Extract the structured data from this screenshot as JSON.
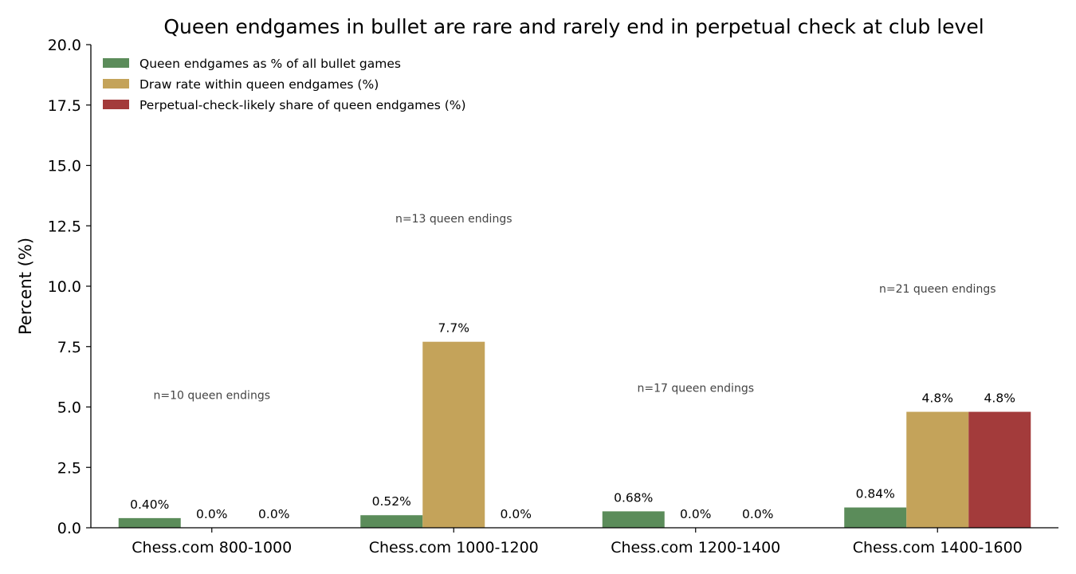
{
  "chart_data": {
    "type": "bar",
    "title": "Queen endgames in bullet are rare and rarely end in perpetual check at club level",
    "xlabel": "",
    "ylabel": "Percent (%)",
    "ylim": [
      0,
      20
    ],
    "yticks": [
      "0.0",
      "2.5",
      "5.0",
      "7.5",
      "10.0",
      "12.5",
      "15.0",
      "17.5",
      "20.0"
    ],
    "categories": [
      "Chess.com 800-1000",
      "Chess.com 1000-1200",
      "Chess.com 1200-1400",
      "Chess.com 1400-1600"
    ],
    "series": [
      {
        "name": "Queen endgames as % of all bullet games",
        "color": "#5b8c5a",
        "values": [
          0.4,
          0.52,
          0.68,
          0.84
        ],
        "labels": [
          "0.40%",
          "0.52%",
          "0.68%",
          "0.84%"
        ]
      },
      {
        "name": "Draw rate within queen endgames (%)",
        "color": "#c4a35a",
        "values": [
          0.0,
          7.7,
          0.0,
          4.8
        ],
        "labels": [
          "0.0%",
          "7.7%",
          "0.0%",
          "4.8%"
        ]
      },
      {
        "name": "Perpetual-check-likely share of queen endgames (%)",
        "color": "#a33b3b",
        "values": [
          0.0,
          0.0,
          0.0,
          4.8
        ],
        "labels": [
          "0.0%",
          "0.0%",
          "0.0%",
          "4.8%"
        ]
      }
    ],
    "annotations": [
      {
        "category": 0,
        "text": "n=10 queen endings",
        "y": 5.5
      },
      {
        "category": 1,
        "text": "n=13 queen endings",
        "y": 12.8
      },
      {
        "category": 2,
        "text": "n=17 queen endings",
        "y": 5.8
      },
      {
        "category": 3,
        "text": "n=21 queen endings",
        "y": 9.9
      }
    ],
    "legend_position": "top-left",
    "grid": false
  }
}
